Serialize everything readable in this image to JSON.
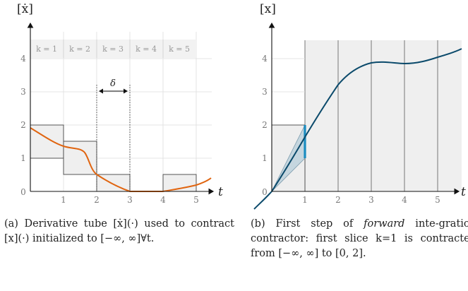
{
  "panel_a": {
    "y_axis_label": "[ẋ]",
    "x_axis_label": "t",
    "delta_label": "δ",
    "x_ticks": [
      "0",
      "1",
      "2",
      "3",
      "4",
      "5"
    ],
    "y_ticks": [
      "1",
      "2",
      "3",
      "4"
    ],
    "slices": [
      "k = 1",
      "k = 2",
      "k = 3",
      "k = 4",
      "k = 5"
    ],
    "caption": {
      "prefix": "(a) Derivative tube ",
      "math1": "[ẋ](·)",
      "mid1": " used to contract ",
      "math2": "[x](·)",
      "mid2": " initialized to ",
      "math3": "[−∞, ∞]∀t",
      "suffix": "."
    }
  },
  "panel_b": {
    "y_axis_label": "[x]",
    "x_axis_label": "t",
    "x_ticks": [
      "0",
      "1",
      "2",
      "3",
      "4",
      "5"
    ],
    "y_ticks": [
      "1",
      "2",
      "3",
      "4"
    ],
    "caption": {
      "prefix": "(b) First step of ",
      "emph": "forward",
      "mid1": " inte-gration contractor: first slice ",
      "math1": "k=1",
      "mid2": " is contracted from ",
      "math2": "[−∞, ∞]",
      "mid3": " to ",
      "math3": "[0, 2]",
      "suffix": "."
    }
  },
  "colors": {
    "derivative_curve": "#e0640f",
    "trajectory": "#0b4a6b",
    "contracted_slice": "#1a8cc0",
    "box_fill": "#efefef",
    "grid": "#dddddd"
  }
}
